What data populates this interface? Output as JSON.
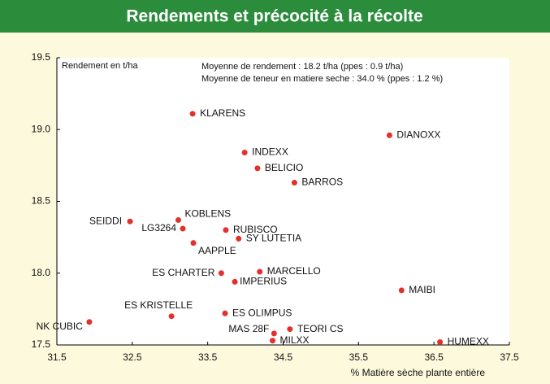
{
  "chart_data": {
    "type": "scatter",
    "title": "Rendements et précocité à la récolte",
    "ylabel": "Rendement en t/ha",
    "xlabel": "% Matière sèche plante entière",
    "annotations": [
      "Moyenne de rendement : 18.2 t/ha  (ppes : 0.9 t/ha)",
      "Moyenne de teneur en matiere seche : 34.0 % (ppes : 1.2 %)"
    ],
    "labels": [
      "KLARENS",
      "DIANOXX",
      "INDEXX",
      "BELICIO",
      "BARROS",
      "SEIDDI",
      "KOBLENS",
      "LG3264",
      "RUBISCO",
      "SY LUTETIA",
      "AAPPLE",
      "ES CHARTER",
      "MARCELLO",
      "IMPERIUS",
      "MAIBI",
      "ES KRISTELLE",
      "ES OLIMPUS",
      "NK CUBIC",
      "TEORI CS",
      "MAS 28F",
      "MILXX",
      "HUMEXX"
    ],
    "x": [
      33.3,
      35.91,
      33.99,
      34.16,
      34.65,
      32.47,
      33.11,
      33.17,
      33.74,
      33.91,
      33.31,
      33.68,
      34.19,
      33.86,
      36.07,
      33.02,
      33.73,
      31.93,
      34.59,
      34.38,
      34.36,
      36.58
    ],
    "values": [
      19.11,
      18.96,
      18.84,
      18.73,
      18.63,
      18.36,
      18.37,
      18.31,
      18.3,
      18.24,
      18.21,
      18.0,
      18.01,
      17.94,
      17.88,
      17.7,
      17.72,
      17.66,
      17.61,
      17.58,
      17.53,
      17.52
    ],
    "color": "#e3302a",
    "xlim": [
      31.5,
      37.5
    ],
    "xticks": [
      31.5,
      32.5,
      33.5,
      34.5,
      35.5,
      36.5,
      37.5
    ],
    "ylim": [
      17.5,
      19.5
    ],
    "yticks": [
      17.5,
      {
        "value": 18,
        "label": "18.0"
      },
      18.5,
      {
        "value": 19,
        "label": "19.0"
      },
      19.5
    ]
  }
}
